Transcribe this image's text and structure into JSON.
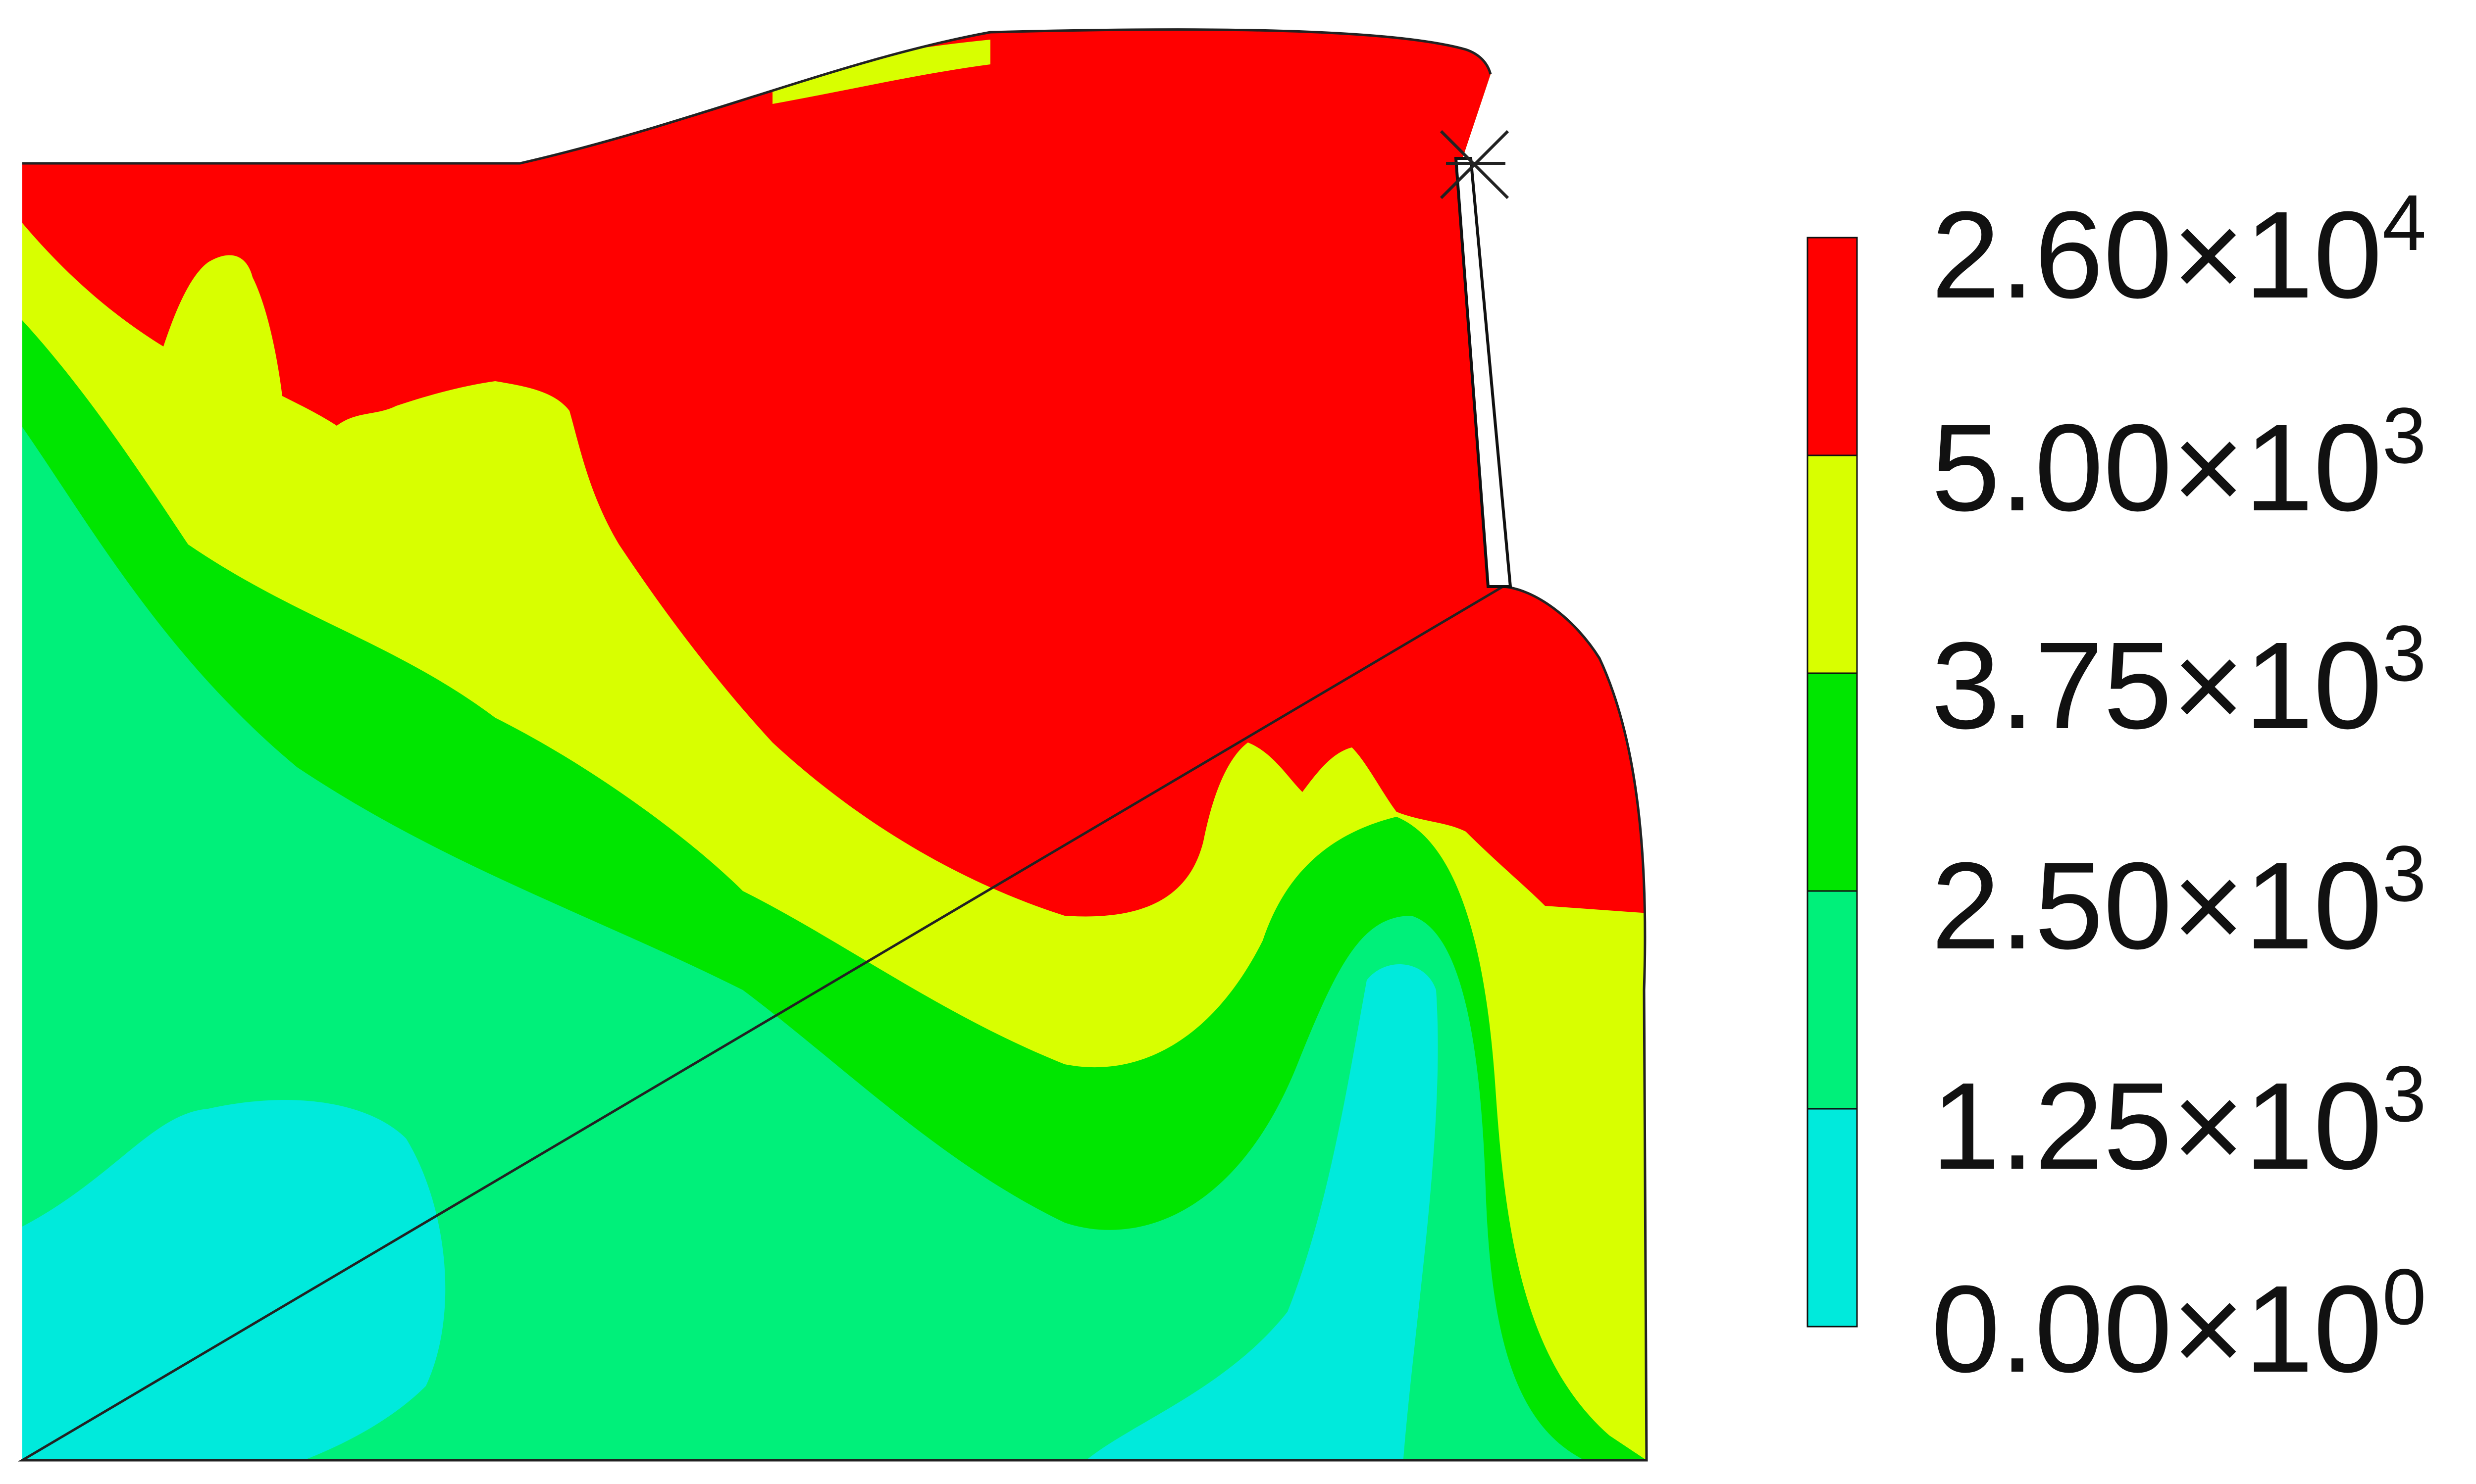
{
  "chart_data": {
    "type": "heatmap",
    "title": "",
    "xlabel": "",
    "ylabel": "",
    "grid": false,
    "legend_placement": "right",
    "legend": {
      "type": "discrete-colorbar",
      "bands": [
        {
          "color": "#ff0000",
          "lower": 5000,
          "upper": 26000
        },
        {
          "color": "#d8ff00",
          "lower": 3750,
          "upper": 5000
        },
        {
          "color": "#00e600",
          "lower": 2500,
          "upper": 3750
        },
        {
          "color": "#00f07a",
          "lower": 1250,
          "upper": 2500
        },
        {
          "color": "#00eadc",
          "lower": 0,
          "upper": 1250
        }
      ],
      "tick_labels": [
        {
          "mantissa": "2.60×10",
          "exponent": "4",
          "value": 26000
        },
        {
          "mantissa": "5.00×10",
          "exponent": "3",
          "value": 5000
        },
        {
          "mantissa": "3.75×10",
          "exponent": "3",
          "value": 3750
        },
        {
          "mantissa": "2.50×10",
          "exponent": "3",
          "value": 2500
        },
        {
          "mantissa": "1.25×10",
          "exponent": "3",
          "value": 1250
        },
        {
          "mantissa": "0.00×10",
          "exponent": "0",
          "value": 0
        }
      ]
    }
  }
}
